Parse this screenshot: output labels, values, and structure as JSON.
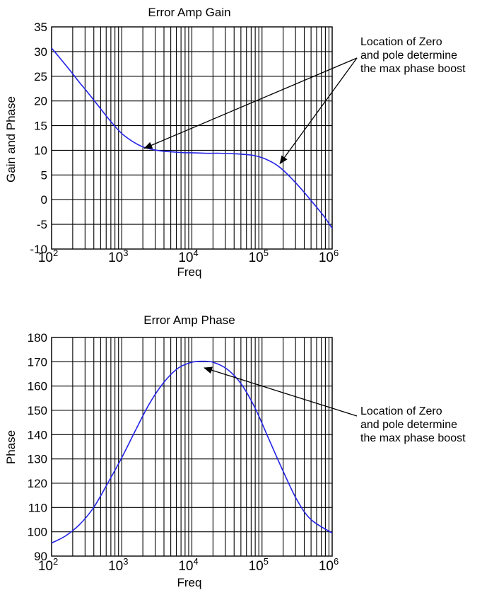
{
  "chart_data": [
    {
      "type": "line",
      "title": "Error Amp Gain",
      "xlabel": "Freq",
      "ylabel": "Gain and Phase",
      "xscale": "log",
      "xlim": [
        100,
        1000000
      ],
      "ylim": [
        -10,
        35
      ],
      "xticks": [
        {
          "base": "10",
          "exp": "2"
        },
        {
          "base": "10",
          "exp": "3"
        },
        {
          "base": "10",
          "exp": "4"
        },
        {
          "base": "10",
          "exp": "5"
        },
        {
          "base": "10",
          "exp": "6"
        }
      ],
      "yticks": [
        "-10",
        "-5",
        "0",
        "5",
        "10",
        "15",
        "20",
        "25",
        "30",
        "35"
      ],
      "grid": true,
      "line_color": "#2323e6",
      "series": [
        {
          "x": [
            100,
            126,
            158,
            200,
            251,
            316,
            398,
            501,
            631,
            794,
            1000,
            1259,
            1585,
            1995,
            2512,
            3162,
            3981,
            5012,
            6310,
            7943,
            10000,
            15849,
            25119,
            39811,
            63096,
            79433,
            100000,
            125893,
            158489,
            199526,
            251189,
            316228,
            398107,
            501187,
            630957,
            794328,
            1000000
          ],
          "y": [
            30.7,
            29.0,
            27.3,
            25.5,
            23.7,
            22.0,
            20.2,
            18.4,
            16.6,
            14.9,
            13.4,
            12.3,
            11.4,
            10.7,
            10.3,
            10.0,
            9.8,
            9.7,
            9.6,
            9.5,
            9.5,
            9.4,
            9.4,
            9.3,
            9.1,
            8.9,
            8.5,
            7.9,
            7.1,
            6.0,
            4.6,
            3.1,
            1.5,
            -0.2,
            -1.9,
            -3.7,
            -5.8
          ]
        }
      ],
      "annotation": {
        "lines": [
          "Location of Zero",
          "and pole determine",
          "the max phase boost"
        ],
        "arrows_to": [
          [
            2100,
            10.4
          ],
          [
            180000,
            7.3
          ]
        ]
      }
    },
    {
      "type": "line",
      "title": "Error Amp Phase",
      "xlabel": "Freq",
      "ylabel": "Phase",
      "xscale": "log",
      "xlim": [
        100,
        1000000
      ],
      "ylim": [
        90,
        180
      ],
      "xticks": [
        {
          "base": "10",
          "exp": "2"
        },
        {
          "base": "10",
          "exp": "3"
        },
        {
          "base": "10",
          "exp": "4"
        },
        {
          "base": "10",
          "exp": "5"
        },
        {
          "base": "10",
          "exp": "6"
        }
      ],
      "yticks": [
        "90",
        "100",
        "110",
        "120",
        "130",
        "140",
        "150",
        "160",
        "170",
        "180"
      ],
      "grid": true,
      "line_color": "#2323e6",
      "series": [
        {
          "x": [
            100,
            158,
            251,
            398,
            631,
            1000,
            1585,
            2512,
            3981,
            6310,
            10000,
            14125,
            19953,
            31623,
            50119,
            79433,
            125893,
            199526,
            316228,
            501187,
            1000000
          ],
          "y": [
            95.4,
            98.3,
            103.0,
            110.0,
            120.0,
            130.5,
            142.0,
            153.0,
            161.5,
            167.3,
            169.8,
            170.2,
            169.8,
            167.0,
            161.0,
            151.0,
            138.0,
            125.0,
            113.0,
            105.0,
            99.5
          ]
        }
      ],
      "annotation": {
        "lines": [
          "Location of Zero",
          "and pole determine",
          "the max phase boost"
        ],
        "arrows_to": [
          [
            15000,
            167.5
          ]
        ]
      }
    }
  ]
}
